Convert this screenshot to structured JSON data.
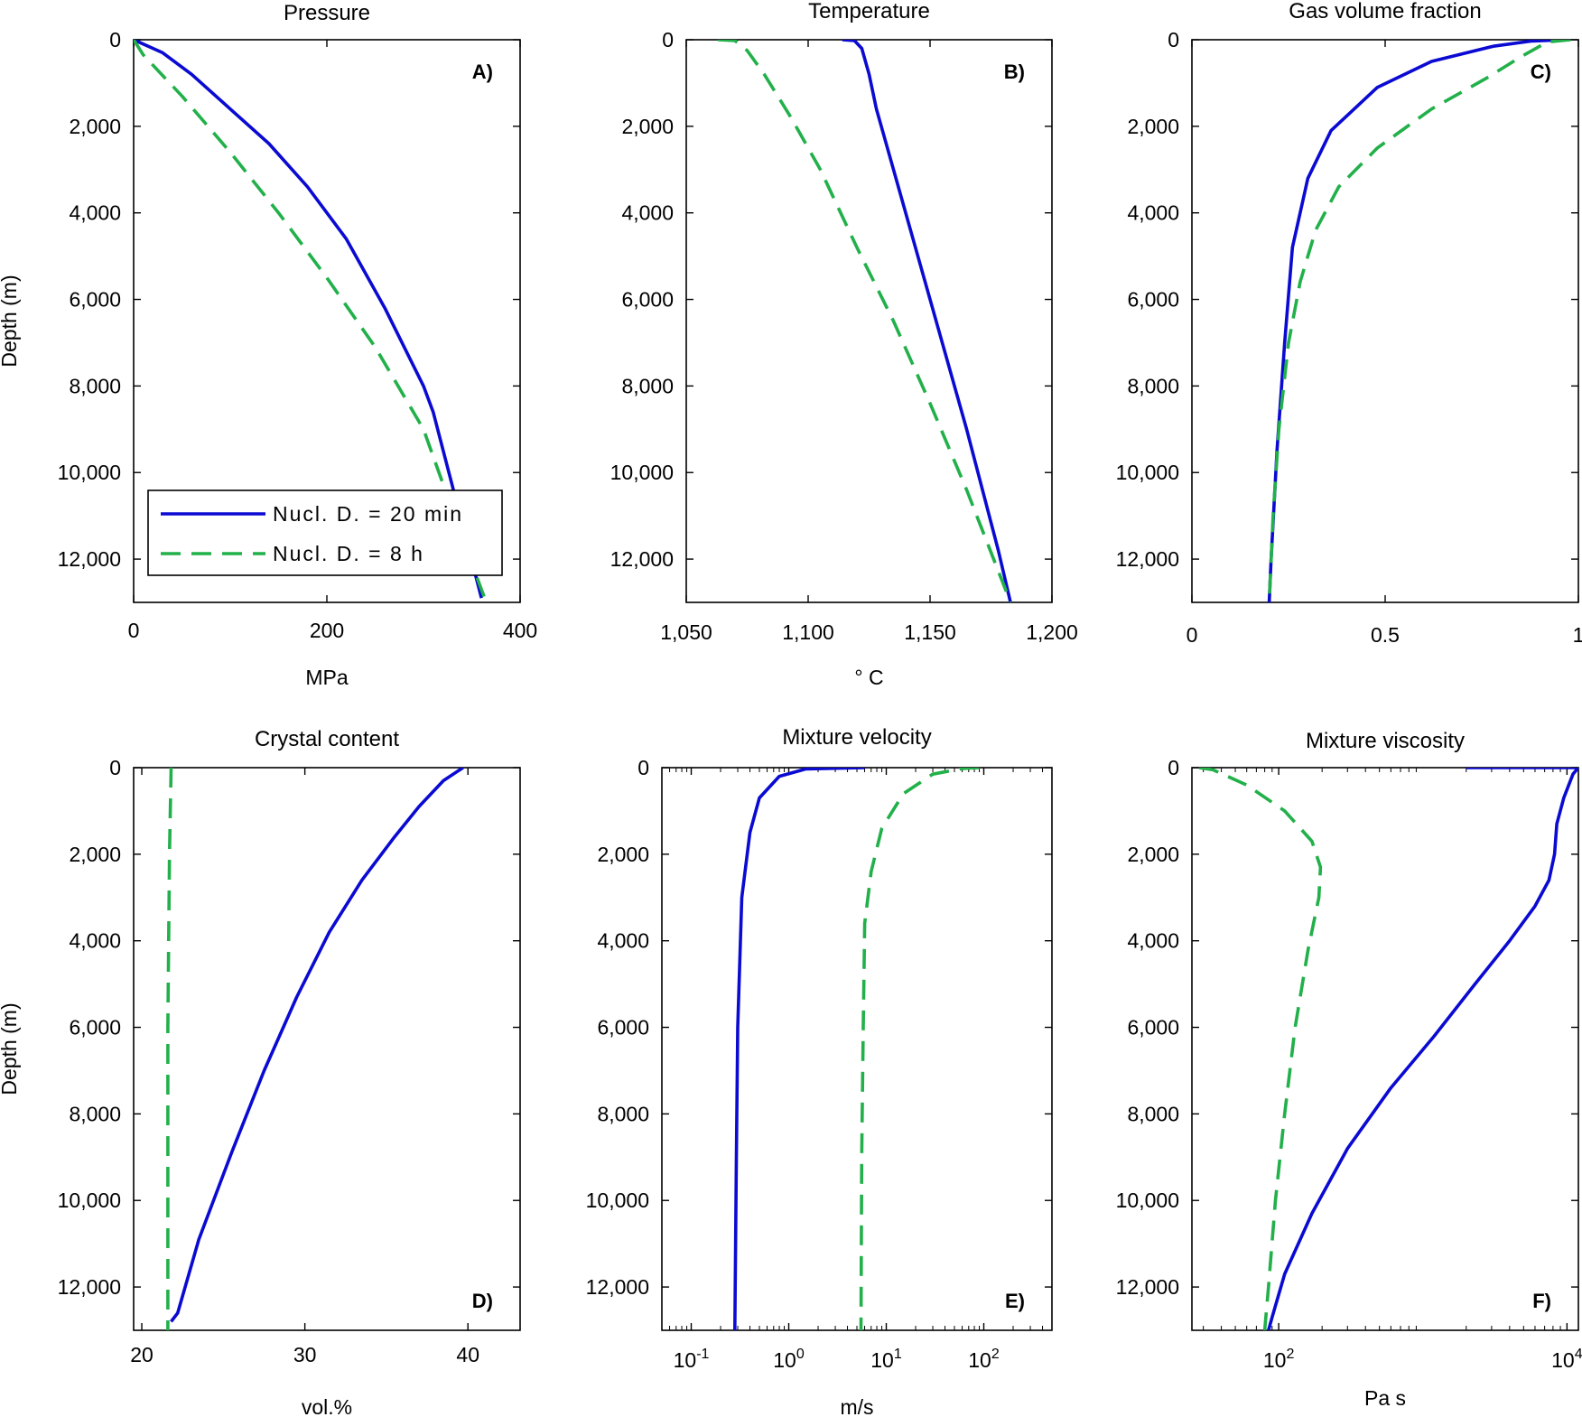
{
  "colors": {
    "series_1": "#0a0ad2",
    "series_2": "#22b04a"
  },
  "legend": {
    "entries": [
      "Nucl. D. = 20 min",
      "Nucl. D. = 8 h"
    ],
    "placement": "bottom-left of panel A"
  },
  "chart_data": [
    {
      "type": "line",
      "letter": "A)",
      "title": "Pressure",
      "xlabel": "MPa",
      "ylabel": "Depth (m)",
      "xlim": [
        0,
        400
      ],
      "ylim": [
        0,
        13000
      ],
      "yreversed": true,
      "xscale": "linear",
      "xticks": [
        0,
        200,
        400
      ],
      "xticklabels": [
        "0",
        "200",
        "400"
      ],
      "yticks": [
        0,
        2000,
        4000,
        6000,
        8000,
        10000,
        12000
      ],
      "yticklabels": [
        "0",
        "2,000",
        "4,000",
        "6,000",
        "8,000",
        "10,000",
        "12,000"
      ],
      "series": [
        {
          "name": "Nucl. D. = 20 min",
          "dash": false,
          "points": [
            [
              0,
              0
            ],
            [
              30,
              300
            ],
            [
              60,
              800
            ],
            [
              100,
              1600
            ],
            [
              140,
              2400
            ],
            [
              180,
              3400
            ],
            [
              220,
              4600
            ],
            [
              260,
              6200
            ],
            [
              300,
              8000
            ],
            [
              310,
              8600
            ],
            [
              360,
              12900
            ]
          ]
        },
        {
          "name": "Nucl. D. = 8 h",
          "dash": true,
          "points": [
            [
              0,
              0
            ],
            [
              10,
              350
            ],
            [
              50,
              1300
            ],
            [
              100,
              2600
            ],
            [
              150,
              4000
            ],
            [
              200,
              5500
            ],
            [
              250,
              7100
            ],
            [
              300,
              9000
            ],
            [
              340,
              11500
            ],
            [
              365,
              13000
            ]
          ]
        }
      ]
    },
    {
      "type": "line",
      "letter": "B)",
      "title": "Temperature",
      "xlabel": "° C",
      "ylabel": "",
      "xlim": [
        1050,
        1200
      ],
      "ylim": [
        0,
        13000
      ],
      "yreversed": true,
      "xscale": "linear",
      "xticks": [
        1050,
        1100,
        1150,
        1200
      ],
      "xticklabels": [
        "1,050",
        "1,100",
        "1,150",
        "1,200"
      ],
      "yticks": [
        0,
        2000,
        4000,
        6000,
        8000,
        10000,
        12000
      ],
      "yticklabels": [
        "0",
        "2,000",
        "4,000",
        "6,000",
        "8,000",
        "10,000",
        "12,000"
      ],
      "series": [
        {
          "name": "Nucl. D. = 20 min",
          "dash": false,
          "points": [
            [
              1114,
              0
            ],
            [
              1119,
              20
            ],
            [
              1122,
              200
            ],
            [
              1125,
              800
            ],
            [
              1128,
              1600
            ],
            [
              1135,
              3000
            ],
            [
              1150,
              6000
            ],
            [
              1165,
              9000
            ],
            [
              1178,
              11800
            ],
            [
              1183,
              13000
            ]
          ]
        },
        {
          "name": "Nucl. D. = 8 h",
          "dash": true,
          "points": [
            [
              1063,
              0
            ],
            [
              1070,
              20
            ],
            [
              1075,
              250
            ],
            [
              1082,
              800
            ],
            [
              1093,
              1800
            ],
            [
              1105,
              3000
            ],
            [
              1120,
              4800
            ],
            [
              1135,
              6500
            ],
            [
              1150,
              8400
            ],
            [
              1165,
              10400
            ],
            [
              1183,
              13000
            ]
          ]
        }
      ]
    },
    {
      "type": "line",
      "letter": "C)",
      "title": "Gas volume fraction",
      "xlabel": "",
      "ylabel": "",
      "xlim": [
        0,
        1
      ],
      "ylim": [
        0,
        13000
      ],
      "yreversed": true,
      "xscale": "linear",
      "xticks": [
        0,
        0.5,
        1
      ],
      "xticklabels": [
        "0",
        "0.5",
        "1"
      ],
      "yticks": [
        0,
        2000,
        4000,
        6000,
        8000,
        10000,
        12000
      ],
      "yticklabels": [
        "0",
        "2,000",
        "4,000",
        "6,000",
        "8,000",
        "10,000",
        "12,000"
      ],
      "series": [
        {
          "name": "Nucl. D. = 20 min",
          "dash": false,
          "points": [
            [
              0.97,
              0
            ],
            [
              0.88,
              30
            ],
            [
              0.78,
              150
            ],
            [
              0.62,
              500
            ],
            [
              0.48,
              1100
            ],
            [
              0.36,
              2100
            ],
            [
              0.3,
              3200
            ],
            [
              0.26,
              4800
            ],
            [
              0.24,
              7000
            ],
            [
              0.22,
              9500
            ],
            [
              0.205,
              12000
            ],
            [
              0.2,
              13000
            ]
          ]
        },
        {
          "name": "Nucl. D. = 8 h",
          "dash": true,
          "points": [
            [
              0.98,
              0
            ],
            [
              0.92,
              50
            ],
            [
              0.85,
              400
            ],
            [
              0.76,
              900
            ],
            [
              0.62,
              1600
            ],
            [
              0.48,
              2500
            ],
            [
              0.38,
              3400
            ],
            [
              0.32,
              4400
            ],
            [
              0.28,
              5600
            ],
            [
              0.25,
              7000
            ],
            [
              0.225,
              9000
            ],
            [
              0.21,
              11000
            ],
            [
              0.2,
              13000
            ]
          ]
        }
      ]
    },
    {
      "type": "line",
      "letter": "D)",
      "title": "Crystal content",
      "xlabel": "vol.%",
      "ylabel": "Depth (m)",
      "xlim": [
        19.5,
        43.2
      ],
      "ylim": [
        0,
        13000
      ],
      "yreversed": true,
      "xscale": "linear",
      "xticks": [
        20,
        30,
        40
      ],
      "xticklabels": [
        "20",
        "30",
        "40"
      ],
      "yticks": [
        0,
        2000,
        4000,
        6000,
        8000,
        10000,
        12000
      ],
      "yticklabels": [
        "0",
        "2,000",
        "4,000",
        "6,000",
        "8,000",
        "10,000",
        "12,000"
      ],
      "series": [
        {
          "name": "Nucl. D. = 20 min",
          "dash": false,
          "points": [
            [
              39.7,
              0
            ],
            [
              38.5,
              300
            ],
            [
              37,
              900
            ],
            [
              35.5,
              1600
            ],
            [
              33.5,
              2600
            ],
            [
              31.5,
              3800
            ],
            [
              29.5,
              5300
            ],
            [
              27.5,
              7000
            ],
            [
              25.5,
              8900
            ],
            [
              23.5,
              10900
            ],
            [
              22.2,
              12600
            ],
            [
              21.8,
              12800
            ]
          ]
        },
        {
          "name": "Nucl. D. = 8 h",
          "dash": true,
          "points": [
            [
              21.8,
              0
            ],
            [
              21.7,
              2000
            ],
            [
              21.6,
              6000
            ],
            [
              21.6,
              13000
            ]
          ]
        }
      ]
    },
    {
      "type": "line",
      "letter": "E)",
      "title": "Mixture velocity",
      "xlabel": "m/s",
      "ylabel": "",
      "xlim": [
        0.05,
        500
      ],
      "ylim": [
        0,
        13000
      ],
      "yreversed": true,
      "xscale": "log",
      "xticks": [
        0.1,
        1,
        10,
        100
      ],
      "xticklabels": [
        "10",
        "10",
        "10",
        "10"
      ],
      "xtickexponents": [
        "-1",
        "0",
        "1",
        "2"
      ],
      "yticks": [
        0,
        2000,
        4000,
        6000,
        8000,
        10000,
        12000
      ],
      "yticklabels": [
        "0",
        "2,000",
        "4,000",
        "6,000",
        "8,000",
        "10,000",
        "12,000"
      ],
      "series": [
        {
          "name": "Nucl. D. = 20 min",
          "dash": false,
          "points": [
            [
              6,
              0
            ],
            [
              1.5,
              30
            ],
            [
              0.8,
              200
            ],
            [
              0.5,
              700
            ],
            [
              0.4,
              1500
            ],
            [
              0.33,
              3000
            ],
            [
              0.3,
              6000
            ],
            [
              0.29,
              9000
            ],
            [
              0.28,
              13000
            ]
          ]
        },
        {
          "name": "Nucl. D. = 8 h",
          "dash": true,
          "points": [
            [
              90,
              0
            ],
            [
              60,
              20
            ],
            [
              30,
              150
            ],
            [
              15,
              600
            ],
            [
              9,
              1400
            ],
            [
              7,
              2400
            ],
            [
              6,
              3600
            ],
            [
              5.8,
              6000
            ],
            [
              5.6,
              9000
            ],
            [
              5.5,
              13000
            ]
          ]
        }
      ]
    },
    {
      "type": "line",
      "letter": "F)",
      "title": "Mixture viscosity",
      "xlabel": "Pa s",
      "ylabel": "",
      "xlim": [
        25,
        12000
      ],
      "ylim": [
        0,
        13000
      ],
      "yreversed": true,
      "xscale": "log",
      "xticks": [
        100,
        10000
      ],
      "xticklabels": [
        "10",
        "10"
      ],
      "xtickexponents": [
        "2",
        "4"
      ],
      "yticks": [
        0,
        2000,
        4000,
        6000,
        8000,
        10000,
        12000
      ],
      "yticklabels": [
        "0",
        "2,000",
        "4,000",
        "6,000",
        "8,000",
        "10,000",
        "12,000"
      ],
      "series": [
        {
          "name": "Nucl. D. = 20 min",
          "dash": false,
          "points": [
            [
              2000,
              0
            ],
            [
              12000,
              0
            ],
            [
              11000,
              150
            ],
            [
              9500,
              700
            ],
            [
              8500,
              1300
            ],
            [
              8200,
              2000
            ],
            [
              7500,
              2600
            ],
            [
              6000,
              3200
            ],
            [
              4000,
              4000
            ],
            [
              2300,
              5000
            ],
            [
              1200,
              6200
            ],
            [
              600,
              7400
            ],
            [
              300,
              8800
            ],
            [
              170,
              10300
            ],
            [
              110,
              11700
            ],
            [
              90,
              12700
            ],
            [
              85,
              13000
            ]
          ]
        },
        {
          "name": "Nucl. D. = 8 h",
          "dash": true,
          "points": [
            [
              28,
              0
            ],
            [
              35,
              50
            ],
            [
              60,
              400
            ],
            [
              110,
              1000
            ],
            [
              170,
              1700
            ],
            [
              195,
              2300
            ],
            [
              190,
              3000
            ],
            [
              160,
              4200
            ],
            [
              130,
              6000
            ],
            [
              110,
              8000
            ],
            [
              95,
              10000
            ],
            [
              85,
              12000
            ],
            [
              80,
              13000
            ]
          ]
        }
      ]
    }
  ]
}
